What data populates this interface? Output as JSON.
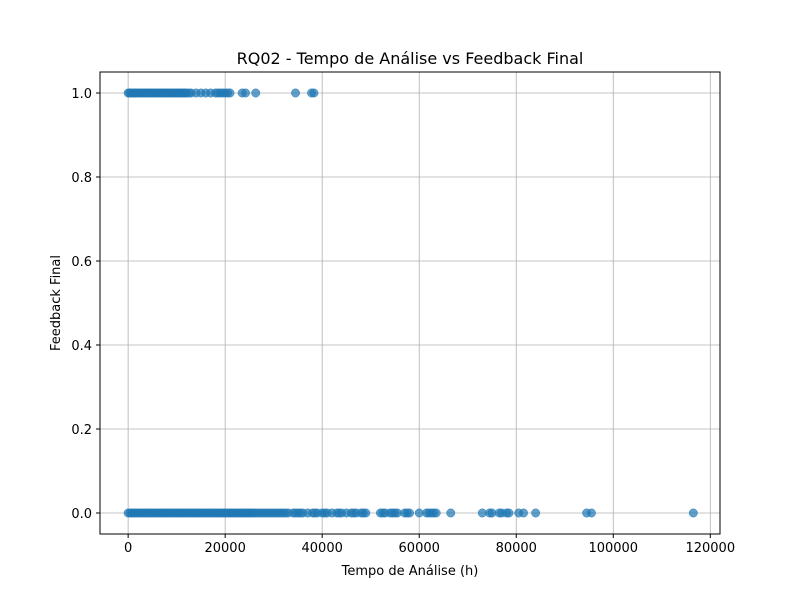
{
  "chart_data": {
    "type": "scatter",
    "title": "RQ02 - Tempo de Análise vs Feedback Final",
    "xlabel": "Tempo de Análise (h)",
    "ylabel": "Feedback Final",
    "xlim": [
      -5800,
      122000
    ],
    "ylim": [
      -0.05,
      1.05
    ],
    "x_ticks": [
      0,
      20000,
      40000,
      60000,
      80000,
      100000,
      120000
    ],
    "x_tick_labels": [
      "0",
      "20000",
      "40000",
      "60000",
      "80000",
      "100000",
      "120000"
    ],
    "y_ticks": [
      0.0,
      0.2,
      0.4,
      0.6,
      0.8,
      1.0
    ],
    "y_tick_labels": [
      "0.0",
      "0.2",
      "0.4",
      "0.6",
      "0.8",
      "1.0"
    ],
    "grid": true,
    "point_color": "#1f77b4",
    "series": [
      {
        "y": 1.0,
        "x": [
          0,
          300,
          600,
          900,
          1200,
          1500,
          1800,
          2100,
          2400,
          2700,
          3000,
          3300,
          3600,
          3900,
          4200,
          4500,
          4800,
          5100,
          5400,
          5700,
          6000,
          6300,
          6600,
          6900,
          7200,
          7500,
          7800,
          8100,
          8400,
          8700,
          9000,
          9300,
          9600,
          9900,
          10200,
          10500,
          10800,
          11100,
          11400,
          11700,
          12000,
          12500,
          13000,
          14000,
          15000,
          16000,
          17000,
          18000,
          18500,
          19000,
          19500,
          20000,
          20500,
          21000,
          23500,
          24200,
          26300,
          34500,
          37800,
          38300
        ]
      },
      {
        "y": 0.0,
        "x": [
          0,
          400,
          800,
          1200,
          1600,
          2000,
          2400,
          2800,
          3200,
          3600,
          4000,
          4400,
          4800,
          5200,
          5600,
          6000,
          6400,
          6800,
          7200,
          7600,
          8000,
          8400,
          8800,
          9200,
          9600,
          10000,
          10400,
          10800,
          11200,
          11600,
          12000,
          12400,
          12800,
          13200,
          13600,
          14000,
          14400,
          14800,
          15200,
          15600,
          16000,
          16400,
          16800,
          17200,
          17600,
          18000,
          18400,
          18800,
          19200,
          19600,
          20000,
          20400,
          20800,
          21200,
          21600,
          22000,
          22400,
          22800,
          23200,
          23600,
          24000,
          24400,
          24800,
          25200,
          25600,
          26000,
          26500,
          27000,
          27500,
          28000,
          28500,
          29000,
          29500,
          30000,
          30500,
          31000,
          31500,
          32000,
          32500,
          33000,
          34000,
          34500,
          35000,
          35500,
          36000,
          37000,
          38000,
          38500,
          39000,
          40000,
          40500,
          41000,
          42000,
          43000,
          43500,
          44000,
          45000,
          46000,
          46500,
          47000,
          48000,
          48500,
          49000,
          52000,
          52500,
          53000,
          54000,
          54500,
          55000,
          55500,
          57000,
          57500,
          58000,
          60000,
          61500,
          62000,
          62500,
          63000,
          63500,
          66500,
          73000,
          74500,
          75000,
          76500,
          77000,
          78000,
          78500,
          80500,
          81500,
          84000,
          94500,
          95500,
          116500
        ]
      }
    ]
  }
}
